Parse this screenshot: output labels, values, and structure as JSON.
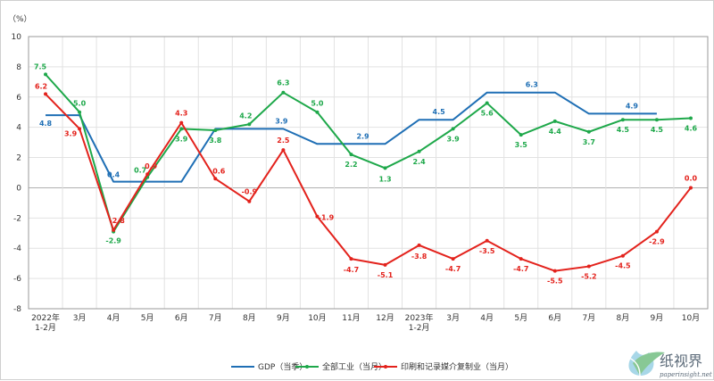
{
  "chart_data": {
    "type": "line",
    "y_unit": "（%）",
    "ylim": [
      -8,
      10
    ],
    "y_ticks": [
      10,
      8,
      6,
      4,
      2,
      0,
      -2,
      -4,
      -6,
      -8
    ],
    "categories": [
      [
        "2022年",
        "1-2月"
      ],
      [
        "3月"
      ],
      [
        "4月"
      ],
      [
        "5月"
      ],
      [
        "6月"
      ],
      [
        "7月"
      ],
      [
        "8月"
      ],
      [
        "9月"
      ],
      [
        "10月"
      ],
      [
        "11月"
      ],
      [
        "12月"
      ],
      [
        "2023年",
        "1-2月"
      ],
      [
        "3月"
      ],
      [
        "4月"
      ],
      [
        "5月"
      ],
      [
        "6月"
      ],
      [
        "7月"
      ],
      [
        "8月"
      ],
      [
        "9月"
      ],
      [
        "10月"
      ]
    ],
    "grid": true,
    "legend_position": "bottom",
    "series": [
      {
        "name": "GDP（当季）",
        "color": "#1f6fb5",
        "marker": false,
        "values": [
          4.8,
          4.8,
          0.4,
          0.4,
          0.4,
          3.9,
          3.9,
          3.9,
          2.9,
          2.9,
          2.9,
          4.5,
          4.5,
          6.3,
          6.3,
          6.3,
          4.9,
          4.9,
          4.9,
          null
        ],
        "labels": {
          "0": "4.8",
          "2": "0.4",
          "7": "3.9",
          "10": "2.9",
          "12": "4.5",
          "15": "6.3",
          "18": "4.9"
        }
      },
      {
        "name": "全部工业（当月）",
        "color": "#1ea84a",
        "marker": true,
        "values": [
          7.5,
          5.0,
          -2.9,
          0.7,
          3.9,
          3.8,
          4.2,
          6.3,
          5.0,
          2.2,
          1.3,
          2.4,
          3.9,
          5.6,
          3.5,
          4.4,
          3.7,
          4.5,
          4.5,
          4.6
        ],
        "labels": {
          "0": "7.5",
          "1": "5.0",
          "2": "-2.9",
          "3": "0.7",
          "4": "3.9",
          "5": "3.8",
          "6": "4.2",
          "7": "6.3",
          "8": "5.0",
          "9": "2.2",
          "10": "1.3",
          "11": "2.4",
          "12": "3.9",
          "13": "5.6",
          "14": "3.5",
          "15": "4.4",
          "16": "3.7",
          "17": "4.5",
          "18": "4.5",
          "19": "4.6"
        }
      },
      {
        "name": "印刷和记录媒介复制业（当月）",
        "color": "#e3221c",
        "marker": true,
        "values": [
          6.2,
          3.9,
          -2.8,
          0.9,
          4.3,
          0.6,
          -0.9,
          2.5,
          -1.9,
          -4.7,
          -5.1,
          -3.8,
          -4.7,
          -3.5,
          -4.7,
          -5.5,
          -5.2,
          -4.5,
          -2.9,
          0.0
        ],
        "labels": {
          "0": "6.2",
          "1": "3.9",
          "2": "-2.8",
          "3": "0.9",
          "4": "4.3",
          "5": "0.6",
          "6": "-0.9",
          "7": "2.5",
          "8": "-1.9",
          "9": "-4.7",
          "10": "-5.1",
          "11": "-3.8",
          "12": "-4.7",
          "13": "-3.5",
          "14": "-4.7",
          "15": "-5.5",
          "16": "-5.2",
          "17": "-4.5",
          "18": "-2.9",
          "19": "0.0"
        }
      }
    ]
  },
  "watermark": {
    "brand": "纸视界",
    "site": "paperinsight.net",
    "icon": "paper-drop-logo-icon"
  }
}
